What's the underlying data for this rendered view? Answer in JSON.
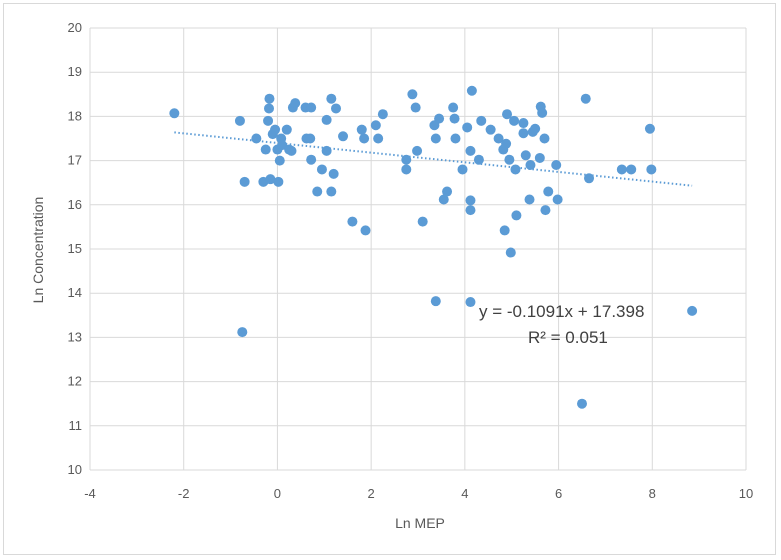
{
  "chart_data": {
    "type": "scatter",
    "title": "",
    "xlabel": "Ln MEP",
    "ylabel": "Ln Concentration",
    "xlim": [
      -4,
      10
    ],
    "ylim": [
      10,
      20
    ],
    "x_ticks": [
      -4,
      -2,
      0,
      2,
      4,
      6,
      8,
      10
    ],
    "y_ticks": [
      10,
      11,
      12,
      13,
      14,
      15,
      16,
      17,
      18,
      19,
      20
    ],
    "grid": true,
    "legend": "none",
    "point_color": "#5b9bd5",
    "trendline": {
      "type": "linear",
      "slope": -0.1091,
      "intercept": 17.398,
      "x_range": [
        -2.2,
        8.85
      ],
      "style": "dotted",
      "color": "#5b9bd5",
      "equation": "y = -0.1091x + 17.398",
      "r_squared": "R² = 0.051"
    },
    "points": [
      [
        -2.2,
        18.07
      ],
      [
        -0.75,
        13.12
      ],
      [
        -0.8,
        17.9
      ],
      [
        -0.7,
        16.52
      ],
      [
        -0.45,
        17.5
      ],
      [
        -0.3,
        16.52
      ],
      [
        -0.25,
        17.25
      ],
      [
        -0.2,
        17.9
      ],
      [
        -0.18,
        18.18
      ],
      [
        -0.17,
        18.4
      ],
      [
        -0.15,
        16.58
      ],
      [
        -0.1,
        17.6
      ],
      [
        -0.05,
        17.7
      ],
      [
        0.0,
        17.25
      ],
      [
        0.02,
        16.52
      ],
      [
        0.05,
        17.0
      ],
      [
        0.08,
        17.5
      ],
      [
        0.1,
        17.35
      ],
      [
        0.2,
        17.7
      ],
      [
        0.25,
        17.25
      ],
      [
        0.3,
        17.22
      ],
      [
        0.33,
        18.2
      ],
      [
        0.38,
        18.3
      ],
      [
        0.6,
        18.2
      ],
      [
        0.62,
        17.5
      ],
      [
        0.7,
        17.5
      ],
      [
        0.72,
        18.2
      ],
      [
        0.72,
        17.02
      ],
      [
        0.85,
        16.3
      ],
      [
        0.95,
        16.8
      ],
      [
        1.05,
        17.92
      ],
      [
        1.05,
        17.22
      ],
      [
        1.15,
        18.4
      ],
      [
        1.15,
        16.3
      ],
      [
        1.2,
        16.7
      ],
      [
        1.25,
        18.18
      ],
      [
        1.4,
        17.55
      ],
      [
        1.6,
        15.62
      ],
      [
        1.8,
        17.7
      ],
      [
        1.85,
        17.5
      ],
      [
        1.88,
        15.42
      ],
      [
        2.1,
        17.8
      ],
      [
        2.15,
        17.5
      ],
      [
        2.25,
        18.05
      ],
      [
        2.75,
        17.02
      ],
      [
        2.75,
        16.8
      ],
      [
        2.88,
        18.5
      ],
      [
        2.95,
        18.2
      ],
      [
        2.98,
        17.22
      ],
      [
        3.1,
        15.62
      ],
      [
        3.35,
        17.8
      ],
      [
        3.38,
        17.5
      ],
      [
        3.38,
        13.82
      ],
      [
        3.45,
        17.95
      ],
      [
        3.55,
        16.12
      ],
      [
        3.62,
        16.3
      ],
      [
        3.75,
        18.2
      ],
      [
        3.78,
        17.95
      ],
      [
        3.8,
        17.5
      ],
      [
        3.95,
        16.8
      ],
      [
        4.05,
        17.75
      ],
      [
        4.12,
        17.22
      ],
      [
        4.12,
        16.1
      ],
      [
        4.12,
        15.88
      ],
      [
        4.15,
        18.58
      ],
      [
        4.12,
        13.8
      ],
      [
        4.3,
        17.02
      ],
      [
        4.35,
        17.9
      ],
      [
        4.55,
        17.7
      ],
      [
        4.72,
        17.5
      ],
      [
        4.82,
        17.25
      ],
      [
        4.85,
        15.42
      ],
      [
        4.88,
        17.38
      ],
      [
        4.9,
        18.05
      ],
      [
        4.95,
        17.02
      ],
      [
        4.98,
        14.92
      ],
      [
        5.05,
        17.9
      ],
      [
        5.08,
        16.8
      ],
      [
        5.1,
        15.76
      ],
      [
        5.25,
        17.85
      ],
      [
        5.25,
        17.62
      ],
      [
        5.3,
        17.12
      ],
      [
        5.38,
        16.12
      ],
      [
        5.4,
        16.9
      ],
      [
        5.45,
        17.65
      ],
      [
        5.5,
        17.72
      ],
      [
        5.6,
        17.06
      ],
      [
        5.62,
        18.22
      ],
      [
        5.65,
        18.08
      ],
      [
        5.7,
        17.5
      ],
      [
        5.72,
        15.88
      ],
      [
        5.78,
        16.3
      ],
      [
        5.95,
        16.9
      ],
      [
        5.98,
        16.12
      ],
      [
        6.5,
        11.5
      ],
      [
        6.58,
        18.4
      ],
      [
        6.65,
        16.6
      ],
      [
        7.35,
        16.8
      ],
      [
        7.55,
        16.8
      ],
      [
        7.95,
        17.72
      ],
      [
        7.98,
        16.8
      ],
      [
        8.85,
        13.6
      ]
    ]
  }
}
